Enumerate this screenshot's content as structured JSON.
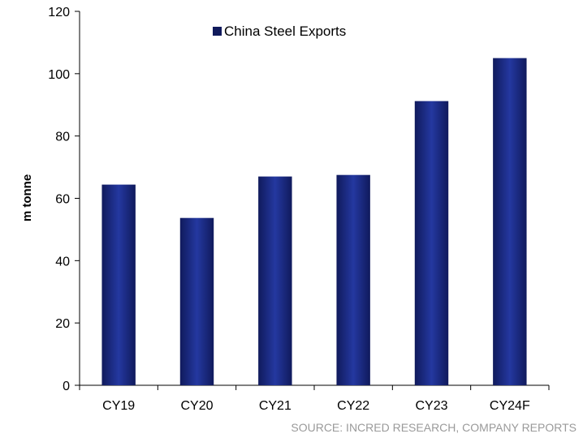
{
  "chart_data": {
    "type": "bar",
    "categories": [
      "CY19",
      "CY20",
      "CY21",
      "CY22",
      "CY23",
      "CY24F"
    ],
    "series": [
      {
        "name": "China Steel Exports",
        "values": [
          64.4,
          53.7,
          67.0,
          67.5,
          91.2,
          105.0
        ]
      }
    ],
    "ylabel": "m tonne",
    "xlabel": "",
    "title": "",
    "ylim": [
      0,
      120
    ],
    "yticks": [
      0,
      20,
      40,
      60,
      80,
      100,
      120
    ],
    "grid": false,
    "legend_position": "top-center",
    "colors": {
      "bar_dark": "#101a5c",
      "bar_mid": "#2438a0"
    }
  },
  "source_note": "SOURCE: INCRED RESEARCH, COMPANY REPORTS"
}
